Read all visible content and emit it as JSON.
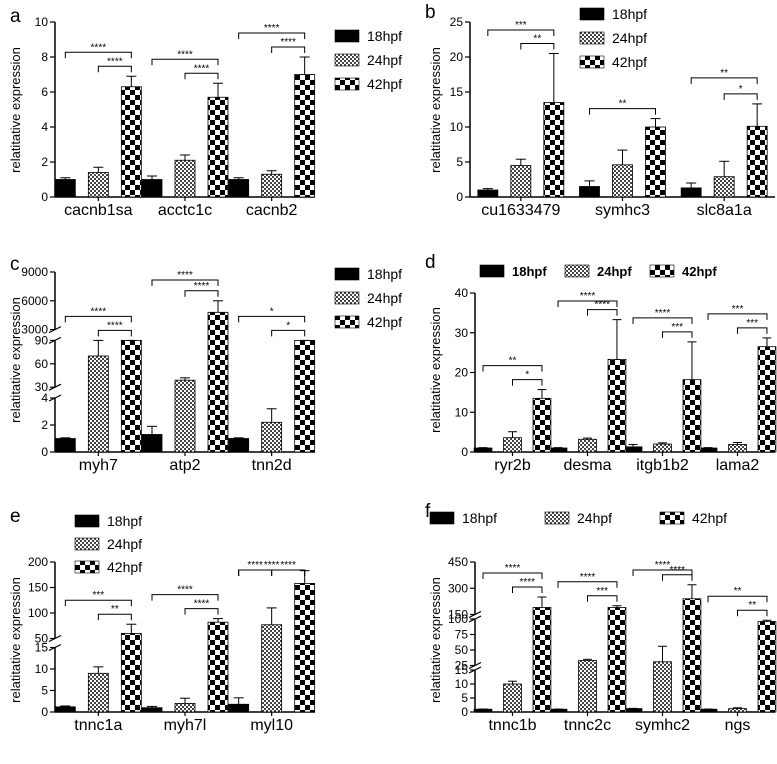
{
  "figure": {
    "series_names": [
      "18hpf",
      "24hpf",
      "42hpf"
    ],
    "colors": {
      "black": "#000000",
      "white": "#ffffff"
    }
  },
  "chart_data": [
    {
      "panel": "a",
      "type": "bar",
      "ylabel": "relatitative expression",
      "categories": [
        "cacnb1sa",
        "acctc1c",
        "cacnb2"
      ],
      "series": [
        {
          "name": "18hpf",
          "values": [
            1.0,
            1.0,
            1.0
          ],
          "errors": [
            0.1,
            0.2,
            0.1
          ]
        },
        {
          "name": "24hpf",
          "values": [
            1.4,
            2.1,
            1.3
          ],
          "errors": [
            0.3,
            0.3,
            0.2
          ]
        },
        {
          "name": "42hpf",
          "values": [
            6.3,
            5.7,
            7.0
          ],
          "errors": [
            0.6,
            0.8,
            1.0
          ]
        }
      ],
      "axis_segments": [
        {
          "from": 0,
          "to": 10,
          "ticks": [
            0,
            2,
            4,
            6,
            8,
            10
          ]
        }
      ],
      "legend": {
        "placement": "right",
        "bold": false
      },
      "significance": [
        {
          "cat": 0,
          "from": 1,
          "to": 2,
          "label": "****"
        },
        {
          "cat": 0,
          "from": 0,
          "to": 2,
          "label": "****"
        },
        {
          "cat": 1,
          "from": 1,
          "to": 2,
          "label": "****"
        },
        {
          "cat": 1,
          "from": 0,
          "to": 2,
          "label": "****"
        },
        {
          "cat": 2,
          "from": 1,
          "to": 2,
          "label": "****"
        },
        {
          "cat": 2,
          "from": 0,
          "to": 2,
          "label": "****"
        }
      ]
    },
    {
      "panel": "b",
      "type": "bar",
      "ylabel": "relatitative expression",
      "categories": [
        "cu1633479",
        "symhc3",
        "slc8a1a"
      ],
      "series": [
        {
          "name": "18hpf",
          "values": [
            1.0,
            1.5,
            1.3
          ],
          "errors": [
            0.2,
            0.8,
            0.7
          ]
        },
        {
          "name": "24hpf",
          "values": [
            4.5,
            4.6,
            2.9
          ],
          "errors": [
            0.9,
            2.1,
            2.2
          ]
        },
        {
          "name": "42hpf",
          "values": [
            13.5,
            10.0,
            10.1
          ],
          "errors": [
            7.0,
            1.2,
            3.2
          ]
        }
      ],
      "axis_segments": [
        {
          "from": 0,
          "to": 25,
          "ticks": [
            0,
            5,
            10,
            15,
            20,
            25
          ]
        }
      ],
      "legend": {
        "placement": "top-right",
        "bold": false
      },
      "significance": [
        {
          "cat": 0,
          "from": 1,
          "to": 2,
          "label": "**"
        },
        {
          "cat": 0,
          "from": 0,
          "to": 2,
          "label": "***"
        },
        {
          "cat": 1,
          "from": 0,
          "to": 2,
          "label": "**"
        },
        {
          "cat": 2,
          "from": 1,
          "to": 2,
          "label": "*"
        },
        {
          "cat": 2,
          "from": 0,
          "to": 2,
          "label": "**"
        }
      ]
    },
    {
      "panel": "c",
      "type": "bar",
      "ylabel": "relatitative expression",
      "categories": [
        "myh7",
        "atp2",
        "tnn2d"
      ],
      "series": [
        {
          "name": "18hpf",
          "values": [
            1.0,
            1.3,
            1.0
          ],
          "errors": [
            0.05,
            0.6,
            0.05
          ]
        },
        {
          "name": "24hpf",
          "values": [
            70,
            39,
            2.2
          ],
          "errors": [
            28,
            3,
            1.0
          ]
        },
        {
          "name": "42hpf",
          "values": [
            2700,
            4800,
            1500
          ],
          "errors": [
            200,
            1200,
            150
          ]
        }
      ],
      "axis_segments": [
        {
          "from": 0,
          "to": 4,
          "ticks": [
            0,
            2,
            4
          ]
        },
        {
          "from": 30,
          "to": 90,
          "ticks": [
            30,
            60,
            90
          ]
        },
        {
          "from": 3000,
          "to": 9000,
          "ticks": [
            3000,
            6000,
            9000
          ]
        }
      ],
      "legend": {
        "placement": "right",
        "bold": false
      },
      "significance": [
        {
          "cat": 0,
          "from": 1,
          "to": 2,
          "label": "****"
        },
        {
          "cat": 0,
          "from": 0,
          "to": 2,
          "label": "****"
        },
        {
          "cat": 1,
          "from": 1,
          "to": 2,
          "label": "****"
        },
        {
          "cat": 1,
          "from": 0,
          "to": 2,
          "label": "****"
        },
        {
          "cat": 2,
          "from": 1,
          "to": 2,
          "label": "*"
        },
        {
          "cat": 2,
          "from": 0,
          "to": 2,
          "label": "*"
        }
      ]
    },
    {
      "panel": "d",
      "type": "bar",
      "ylabel": "relatitative expression",
      "categories": [
        "ryr2b",
        "desma",
        "itgb1b2",
        "lama2"
      ],
      "series": [
        {
          "name": "18hpf",
          "values": [
            1.0,
            1.0,
            1.3,
            1.0
          ],
          "errors": [
            0.1,
            0.1,
            0.6,
            0.1
          ]
        },
        {
          "name": "24hpf",
          "values": [
            3.6,
            3.2,
            2.0,
            1.9
          ],
          "errors": [
            1.5,
            0.3,
            0.3,
            0.5
          ]
        },
        {
          "name": "42hpf",
          "values": [
            13.5,
            23.3,
            18.2,
            26.5
          ],
          "errors": [
            2.2,
            10.0,
            9.5,
            2.2
          ]
        }
      ],
      "axis_segments": [
        {
          "from": 0,
          "to": 40,
          "ticks": [
            0,
            10,
            20,
            30,
            40
          ]
        }
      ],
      "legend": {
        "placement": "top",
        "bold": true
      },
      "significance": [
        {
          "cat": 0,
          "from": 1,
          "to": 2,
          "label": "*"
        },
        {
          "cat": 0,
          "from": 0,
          "to": 2,
          "label": "**"
        },
        {
          "cat": 1,
          "from": 1,
          "to": 2,
          "label": "****"
        },
        {
          "cat": 1,
          "from": 0,
          "to": 2,
          "label": "****"
        },
        {
          "cat": 2,
          "from": 1,
          "to": 2,
          "label": "***"
        },
        {
          "cat": 2,
          "from": 0,
          "to": 2,
          "label": "****"
        },
        {
          "cat": 3,
          "from": 1,
          "to": 2,
          "label": "***"
        },
        {
          "cat": 3,
          "from": 0,
          "to": 2,
          "label": "***"
        }
      ]
    },
    {
      "panel": "e",
      "type": "bar",
      "ylabel": "relatitative expression",
      "categories": [
        "tnnc1a",
        "myh7l",
        "myl10"
      ],
      "series": [
        {
          "name": "18hpf",
          "values": [
            1.2,
            1.0,
            1.8
          ],
          "errors": [
            0.2,
            0.3,
            1.5
          ]
        },
        {
          "name": "24hpf",
          "values": [
            9.0,
            2.0,
            77
          ],
          "errors": [
            1.5,
            1.2,
            33
          ]
        },
        {
          "name": "42hpf",
          "values": [
            60,
            82,
            158
          ],
          "errors": [
            18,
            7,
            25
          ]
        }
      ],
      "axis_segments": [
        {
          "from": 0,
          "to": 15,
          "ticks": [
            0,
            5,
            10,
            15
          ]
        },
        {
          "from": 50,
          "to": 200,
          "ticks": [
            50,
            100,
            150,
            200
          ]
        }
      ],
      "legend": {
        "placement": "top-left",
        "bold": false
      },
      "significance": [
        {
          "cat": 0,
          "from": 1,
          "to": 2,
          "label": "**"
        },
        {
          "cat": 0,
          "from": 0,
          "to": 2,
          "label": "***"
        },
        {
          "cat": 1,
          "from": 1,
          "to": 2,
          "label": "****"
        },
        {
          "cat": 1,
          "from": 0,
          "to": 2,
          "label": "****"
        },
        {
          "cat": 2,
          "from": 0,
          "to": 1,
          "label": "****"
        },
        {
          "cat": 2,
          "from": 1,
          "to": 2,
          "label": "****"
        },
        {
          "cat": 2,
          "from": 0,
          "to": 2,
          "label": "****"
        }
      ]
    },
    {
      "panel": "f",
      "type": "bar",
      "ylabel": "relatitative expression",
      "categories": [
        "tnnc1b",
        "tnnc2c",
        "symhc2",
        "ngs"
      ],
      "series": [
        {
          "name": "18hpf",
          "values": [
            1.0,
            1.0,
            1.2,
            1.0
          ],
          "errors": [
            0.05,
            0.05,
            0.1,
            0.05
          ]
        },
        {
          "name": "24hpf",
          "values": [
            10.0,
            33,
            31,
            1.2
          ],
          "errors": [
            1.0,
            2,
            25,
            0.3
          ]
        },
        {
          "name": "42hpf",
          "values": [
            190,
            190,
            240,
            96
          ],
          "errors": [
            60,
            10,
            80,
            2
          ]
        }
      ],
      "axis_segments": [
        {
          "from": 0,
          "to": 15,
          "ticks": [
            0,
            5,
            10,
            15
          ]
        },
        {
          "from": 25,
          "to": 100,
          "ticks": [
            25,
            50,
            75,
            100
          ]
        },
        {
          "from": 150,
          "to": 450,
          "ticks": [
            150,
            300,
            450
          ]
        }
      ],
      "legend": {
        "placement": "top",
        "bold": false
      },
      "significance": [
        {
          "cat": 0,
          "from": 1,
          "to": 2,
          "label": "****"
        },
        {
          "cat": 0,
          "from": 0,
          "to": 2,
          "label": "****"
        },
        {
          "cat": 1,
          "from": 1,
          "to": 2,
          "label": "***"
        },
        {
          "cat": 1,
          "from": 0,
          "to": 2,
          "label": "****"
        },
        {
          "cat": 2,
          "from": 1,
          "to": 2,
          "label": "****"
        },
        {
          "cat": 2,
          "from": 0,
          "to": 2,
          "label": "****"
        },
        {
          "cat": 3,
          "from": 1,
          "to": 2,
          "label": "**"
        },
        {
          "cat": 3,
          "from": 0,
          "to": 2,
          "label": "**"
        }
      ]
    }
  ]
}
